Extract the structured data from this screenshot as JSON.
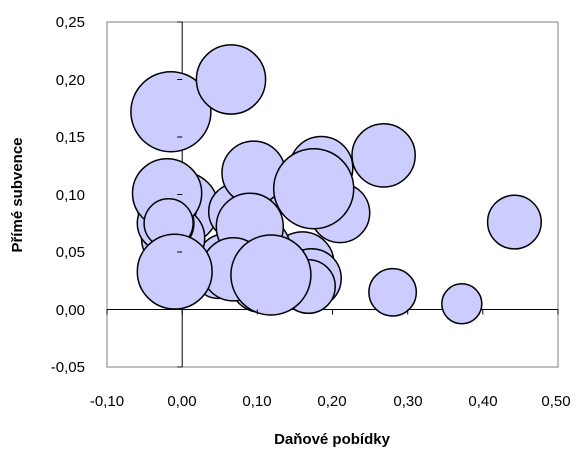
{
  "chart_data": {
    "type": "bubble",
    "title": "",
    "xlabel": "Daňové pobídky",
    "ylabel": "Přímé subvence",
    "xlim": [
      -0.1,
      0.5
    ],
    "ylim": [
      -0.05,
      0.25
    ],
    "x_ticks": [
      "-0,10",
      "0,00",
      "0,10",
      "0,20",
      "0,30",
      "0,40",
      "0,50"
    ],
    "y_ticks": [
      "-0,05",
      "0,00",
      "0,05",
      "0,10",
      "0,15",
      "0,20",
      "0,25"
    ],
    "grid": false,
    "legend": "none",
    "bubble_color": "#ccccff",
    "bubble_stroke": "#000000",
    "points": [
      {
        "x": 0.185,
        "y": 0.123,
        "size": 0.025
      },
      {
        "x": 0.098,
        "y": 0.103,
        "size": 0.025
      },
      {
        "x": 0.0,
        "y": 0.088,
        "size": 0.033
      },
      {
        "x": 0.073,
        "y": 0.085,
        "size": 0.02
      },
      {
        "x": -0.02,
        "y": 0.09,
        "size": 0.022
      },
      {
        "x": 0.16,
        "y": 0.04,
        "size": 0.025
      },
      {
        "x": 0.172,
        "y": 0.027,
        "size": 0.022
      },
      {
        "x": 0.168,
        "y": 0.02,
        "size": 0.018
      },
      {
        "x": 0.098,
        "y": 0.052,
        "size": 0.03
      },
      {
        "x": 0.058,
        "y": 0.04,
        "size": 0.022
      },
      {
        "x": 0.086,
        "y": 0.03,
        "size": 0.018
      },
      {
        "x": 0.048,
        "y": 0.031,
        "size": 0.015
      },
      {
        "x": 0.105,
        "y": 0.025,
        "size": 0.025
      },
      {
        "x": -0.012,
        "y": 0.062,
        "size": 0.025
      },
      {
        "x": -0.022,
        "y": 0.075,
        "size": 0.02
      },
      {
        "x": -0.02,
        "y": 0.101,
        "size": 0.03
      },
      {
        "x": -0.015,
        "y": 0.172,
        "size": 0.04
      },
      {
        "x": 0.065,
        "y": 0.2,
        "size": 0.03
      },
      {
        "x": 0.268,
        "y": 0.134,
        "size": 0.025
      },
      {
        "x": 0.095,
        "y": 0.119,
        "size": 0.025
      },
      {
        "x": 0.21,
        "y": 0.084,
        "size": 0.022
      },
      {
        "x": 0.09,
        "y": 0.072,
        "size": 0.028
      },
      {
        "x": -0.018,
        "y": 0.075,
        "size": 0.015
      },
      {
        "x": 0.068,
        "y": 0.035,
        "size": 0.025
      },
      {
        "x": -0.01,
        "y": 0.033,
        "size": 0.035
      },
      {
        "x": 0.118,
        "y": 0.03,
        "size": 0.04
      },
      {
        "x": 0.175,
        "y": 0.105,
        "size": 0.04
      },
      {
        "x": 0.442,
        "y": 0.076,
        "size": 0.018
      },
      {
        "x": 0.28,
        "y": 0.015,
        "size": 0.014
      },
      {
        "x": 0.372,
        "y": 0.005,
        "size": 0.01
      }
    ]
  }
}
